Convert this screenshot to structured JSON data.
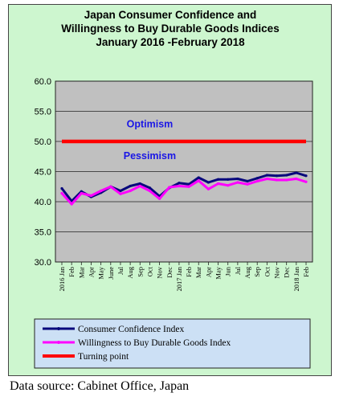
{
  "chart_data": {
    "type": "line",
    "title_lines": [
      "Japan Consumer Confidence and",
      "Willingness to Buy Durable Goods Indices",
      "January 2016 -February 2018"
    ],
    "ylim": [
      30.0,
      60.0
    ],
    "yticks": [
      "60.0",
      "55.0",
      "50.0",
      "45.0",
      "40.0",
      "35.0",
      "30.0"
    ],
    "grid": true,
    "categories": [
      "2016 Jan",
      "Feb",
      "Mar",
      "Apr",
      "May",
      "June",
      "Jul",
      "Aug",
      "Sep",
      "Oct",
      "Nov",
      "Dec",
      "2017 Jan",
      "Feb",
      "Mar",
      "Apr",
      "May",
      "Jun",
      "Jul",
      "Aug",
      "Sep",
      "Oct",
      "Nov",
      "Dec",
      "2018 Jan",
      "Feb"
    ],
    "series": [
      {
        "name": "Consumer Confidence Index",
        "color": "#08087c",
        "values": [
          42.2,
          40.1,
          41.7,
          40.8,
          41.5,
          42.5,
          41.8,
          42.6,
          43.0,
          42.3,
          40.9,
          42.3,
          43.1,
          42.9,
          44.0,
          43.2,
          43.7,
          43.7,
          43.8,
          43.4,
          43.9,
          44.4,
          44.3,
          44.4,
          44.8,
          44.3
        ]
      },
      {
        "name": "Willingness to Buy Durable Goods Index",
        "color": "#ff00ff",
        "values": [
          41.4,
          39.6,
          41.4,
          41.0,
          41.8,
          42.5,
          41.3,
          41.8,
          42.6,
          41.8,
          40.5,
          42.4,
          42.6,
          42.5,
          43.5,
          42.1,
          43.0,
          42.7,
          43.2,
          42.9,
          43.4,
          43.8,
          43.6,
          43.6,
          43.8,
          43.3
        ]
      },
      {
        "name": "Turning point",
        "color": "#ff0000",
        "values": [
          50.0,
          50.0,
          50.0,
          50.0,
          50.0,
          50.0,
          50.0,
          50.0,
          50.0,
          50.0,
          50.0,
          50.0,
          50.0,
          50.0,
          50.0,
          50.0,
          50.0,
          50.0,
          50.0,
          50.0,
          50.0,
          50.0,
          50.0,
          50.0,
          50.0,
          50.0
        ]
      }
    ],
    "annotations": [
      {
        "text": "Optimism",
        "x": "Oct",
        "y": 52.9
      },
      {
        "text": "Pessimism",
        "x": "Oct",
        "y": 47.6
      }
    ],
    "legend_placement": "bottom"
  },
  "source_note": "Data source: Cabinet Office, Japan",
  "colors": {
    "frame_bg": "#cdf6cf",
    "plot_bg": "#c0c0c0",
    "legend_bg": "#cce0f5"
  }
}
